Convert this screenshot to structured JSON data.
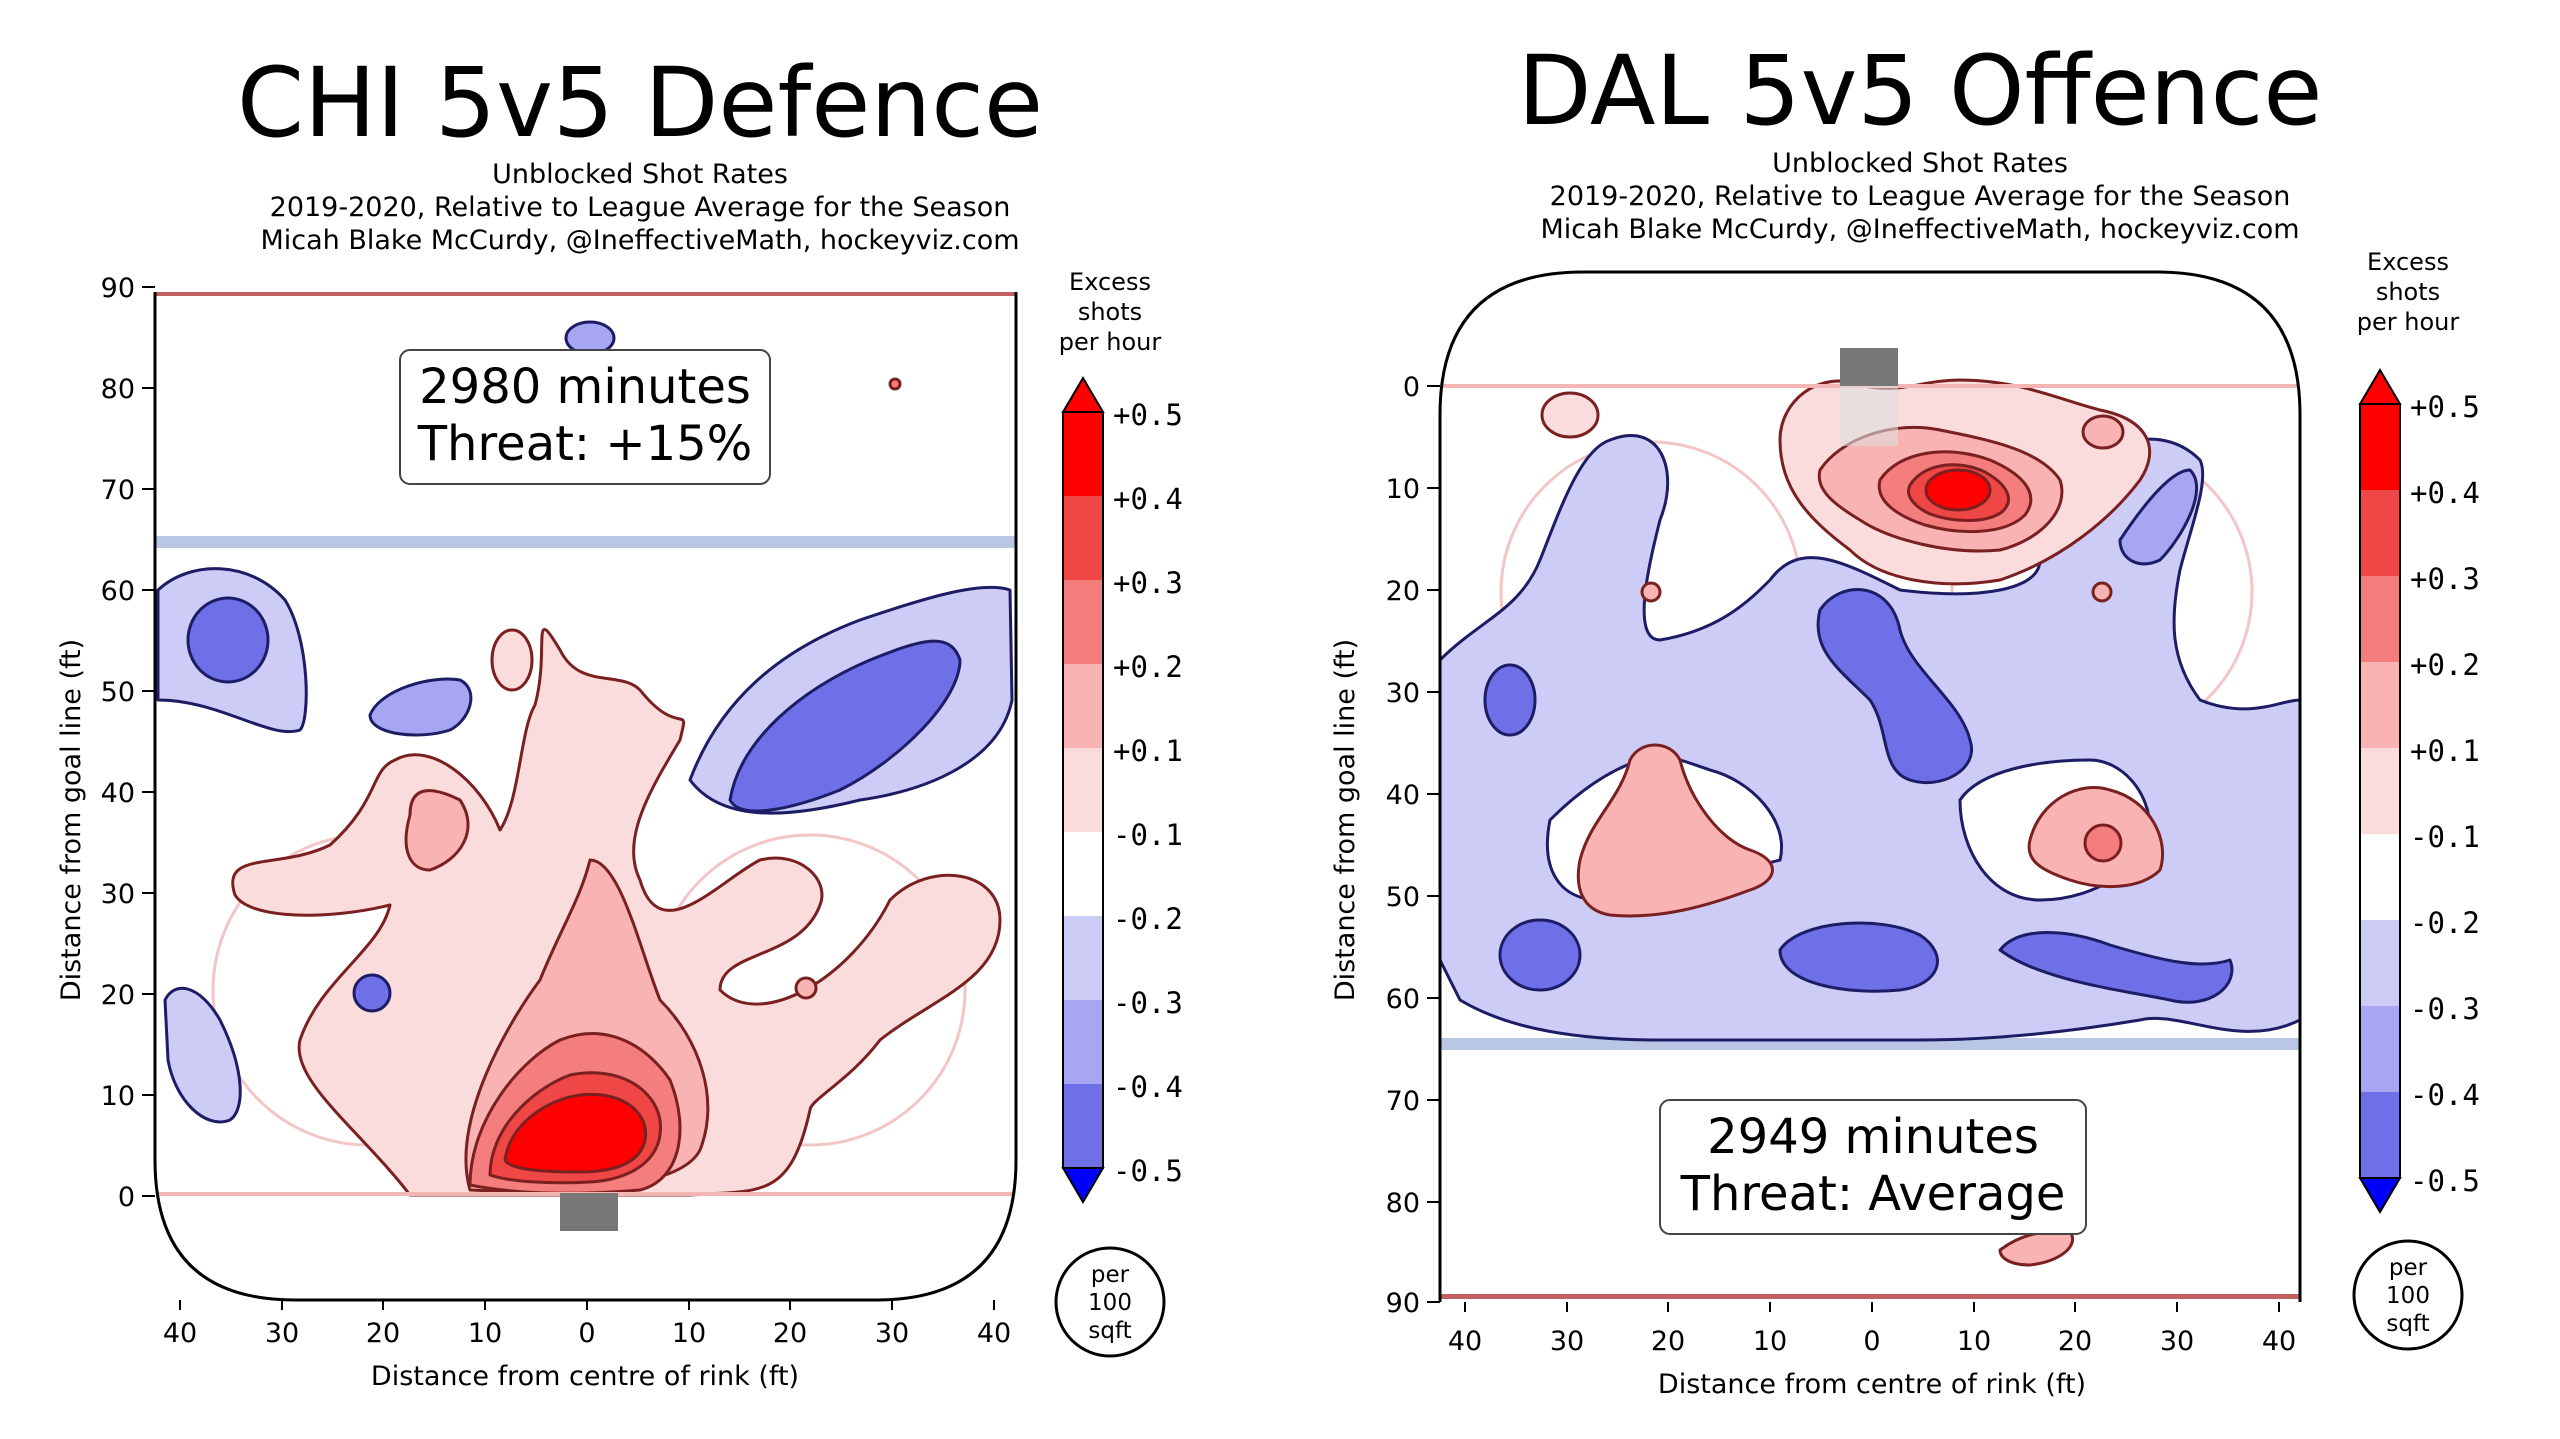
{
  "left": {
    "title": "CHI 5v5 Defence",
    "subtitle": [
      "Unblocked Shot Rates",
      "2019-2020, Relative to League Average for the Season",
      "Micah Blake McCurdy, @IneffectiveMath, hockeyviz.com"
    ],
    "minutes": "2980 minutes",
    "threat": "Threat: +15%",
    "xlabel": "Distance from centre of rink (ft)",
    "ylabel": "Distance from goal line (ft)",
    "xticks": [
      "40",
      "30",
      "20",
      "10",
      "0",
      "10",
      "20",
      "30",
      "40"
    ],
    "yticks": [
      "90",
      "80",
      "70",
      "60",
      "50",
      "40",
      "30",
      "20",
      "10",
      "0"
    ],
    "colorbar_title": [
      "Excess",
      "shots",
      "per hour"
    ],
    "colorbar_ticks": [
      "+0.5",
      "+0.4",
      "+0.3",
      "+0.2",
      "+0.1",
      "-0.1",
      "-0.2",
      "-0.3",
      "-0.4",
      "-0.5"
    ],
    "unit_badge": [
      "per",
      "100",
      "sqft"
    ]
  },
  "right": {
    "title": "DAL 5v5 Offence",
    "subtitle": [
      "Unblocked Shot Rates",
      "2019-2020, Relative to League Average for the Season",
      "Micah Blake McCurdy, @IneffectiveMath, hockeyviz.com"
    ],
    "minutes": "2949 minutes",
    "threat": "Threat: Average",
    "xlabel": "Distance from centre of rink (ft)",
    "ylabel": "Distance from goal line (ft)",
    "xticks": [
      "40",
      "30",
      "20",
      "10",
      "0",
      "10",
      "20",
      "30",
      "40"
    ],
    "yticks": [
      "0",
      "10",
      "20",
      "30",
      "40",
      "50",
      "60",
      "70",
      "80",
      "90"
    ],
    "colorbar_title": [
      "Excess",
      "shots",
      "per hour"
    ],
    "colorbar_ticks": [
      "+0.5",
      "+0.4",
      "+0.3",
      "+0.2",
      "+0.1",
      "-0.1",
      "-0.2",
      "-0.3",
      "-0.4",
      "-0.5"
    ],
    "unit_badge": [
      "per",
      "100",
      "sqft"
    ]
  },
  "colors": {
    "red_levels": [
      "#fbdcdc",
      "#f9b3b3",
      "#f47d7d",
      "#ef4646",
      "#ff0000"
    ],
    "blue_levels": [
      "#ccccf7",
      "#a6a6f2",
      "#6f6fe8",
      "#3a3aee",
      "#0000ff"
    ],
    "goal_line": "#f4b5b5",
    "blue_line": "#b9c6e6",
    "net": "#777777"
  },
  "chart_data": [
    {
      "type": "heatmap",
      "title": "CHI 5v5 Defence",
      "xlabel": "Distance from centre of rink (ft)",
      "ylabel": "Distance from goal line (ft)",
      "xlim": [
        -42.5,
        42.5
      ],
      "ylim": [
        -11,
        89
      ],
      "colorbar_range": [
        -0.5,
        0.5
      ],
      "colorbar_unit": "Excess shots per hour per 100 sqft",
      "minutes": 2980,
      "threat": "+15%",
      "hotspots": [
        {
          "x": 2,
          "y": 7,
          "value": 0.5
        },
        {
          "x": 0,
          "y": 25,
          "value": 0.2
        },
        {
          "x": -12,
          "y": 35,
          "value": 0.2
        },
        {
          "x": -5,
          "y": 52,
          "value": 0.1
        },
        {
          "x": 22,
          "y": 20,
          "value": 0.2
        },
        {
          "x": -22,
          "y": 20,
          "value": -0.3
        },
        {
          "x": 31,
          "y": 43,
          "value": -0.3
        },
        {
          "x": -36,
          "y": 54,
          "value": -0.3
        },
        {
          "x": -17,
          "y": 48,
          "value": -0.2
        },
        {
          "x": -41,
          "y": 13,
          "value": -0.2
        },
        {
          "x": 0,
          "y": 85,
          "value": -0.2
        },
        {
          "x": 30,
          "y": 80,
          "value": 0.2
        }
      ]
    },
    {
      "type": "heatmap",
      "title": "DAL 5v5 Offence",
      "xlabel": "Distance from centre of rink (ft)",
      "ylabel": "Distance from goal line (ft)",
      "xlim": [
        -42.5,
        42.5
      ],
      "ylim": [
        -11,
        89
      ],
      "colorbar_range": [
        -0.5,
        0.5
      ],
      "colorbar_unit": "Excess shots per hour per 100 sqft",
      "minutes": 2949,
      "threat": "Average",
      "hotspots": [
        {
          "x": 7,
          "y": 10,
          "value": 0.5
        },
        {
          "x": -31,
          "y": 3,
          "value": 0.2
        },
        {
          "x": 22,
          "y": 4,
          "value": 0.2
        },
        {
          "x": -25,
          "y": 43,
          "value": 0.2
        },
        {
          "x": 23,
          "y": 45,
          "value": 0.3
        },
        {
          "x": 3,
          "y": 32,
          "value": -0.3
        },
        {
          "x": -37,
          "y": 31,
          "value": -0.3
        },
        {
          "x": -33,
          "y": 56,
          "value": -0.3
        },
        {
          "x": 0,
          "y": 56,
          "value": -0.3
        },
        {
          "x": 28,
          "y": 56,
          "value": -0.3
        },
        {
          "x": -25,
          "y": 10,
          "value": -0.2
        },
        {
          "x": 32,
          "y": 20,
          "value": -0.2
        },
        {
          "x": 20,
          "y": 85,
          "value": 0.2
        }
      ]
    }
  ]
}
